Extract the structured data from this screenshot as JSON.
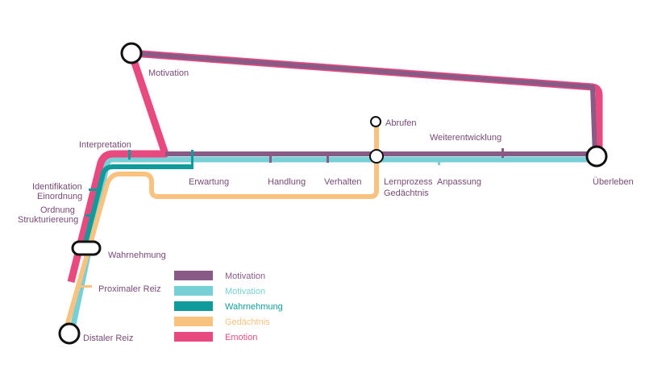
{
  "colors": {
    "motivation_purple": "#8a5a86",
    "motivation_cyan": "#77d0d6",
    "wahrnehmung": "#0f9b9b",
    "gedaechtnis": "#f9c27e",
    "emotion": "#e84a7f",
    "label": "#7a4a78"
  },
  "stations": {
    "motivation": "Motivation",
    "interpretation": "Interpretation",
    "identifikation": "Identifikation",
    "einordnung": "Einordnung",
    "ordnung": "Ordnung",
    "strukturiereung": "Strukturiereung",
    "wahrnehmung": "Wahrnehmung",
    "proximaler_reiz": "Proximaler Reiz",
    "distaler_reiz": "Distaler Reiz",
    "erwartung": "Erwartung",
    "handlung": "Handlung",
    "verhalten": "Verhalten",
    "abrufen": "Abrufen",
    "lernprozess": "Lernprozess",
    "gedaechtnis": "Gedächtnis",
    "weiterentwicklung": "Weiterentwicklung",
    "anpassung": "Anpassung",
    "ueberleben": "Überleben"
  },
  "legend": [
    {
      "label": "Motivation",
      "color": "#8a5a86",
      "text_color": "#8a5a86"
    },
    {
      "label": "Motivation",
      "color": "#77d0d6",
      "text_color": "#77d0d6"
    },
    {
      "label": "Wahrnehmung",
      "color": "#0f9b9b",
      "text_color": "#0f9b9b"
    },
    {
      "label": "Gedächtnis",
      "color": "#f9c27e",
      "text_color": "#f9c27e"
    },
    {
      "label": "Emotion",
      "color": "#e84a7f",
      "text_color": "#e84a7f"
    }
  ]
}
